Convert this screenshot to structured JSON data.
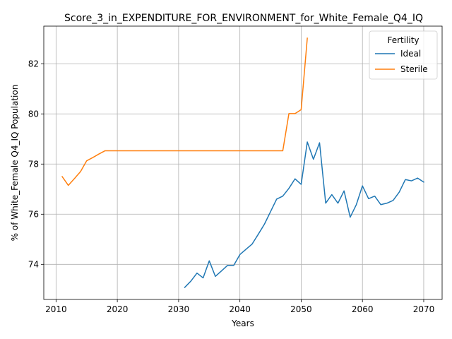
{
  "chart_data": {
    "type": "line",
    "title": "Score_3_in_EXPENDITURE_FOR_ENVIRONMENT_for_White_Female_Q4_IQ",
    "xlabel": "Years",
    "ylabel": "% of White_Female Q4_IQ Population",
    "xlim": [
      2008.0,
      2073.0
    ],
    "ylim": [
      72.6,
      83.5
    ],
    "xticks": [
      2010,
      2020,
      2030,
      2040,
      2050,
      2060,
      2070
    ],
    "yticks": [
      74,
      76,
      78,
      80,
      82
    ],
    "grid": true,
    "legend": {
      "title": "Fertility",
      "placement": "upper-right"
    },
    "series": [
      {
        "name": "Ideal",
        "color": "#1f77b4",
        "x": [
          2031,
          2032,
          2033,
          2034,
          2035,
          2036,
          2037,
          2038,
          2039,
          2040,
          2041,
          2042,
          2043,
          2044,
          2045,
          2046,
          2047,
          2048,
          2049,
          2050,
          2051,
          2052,
          2053,
          2054,
          2055,
          2056,
          2057,
          2058,
          2059,
          2060,
          2061,
          2062,
          2063,
          2064,
          2065,
          2066,
          2067,
          2068,
          2069,
          2070
        ],
        "y": [
          73.08,
          73.33,
          73.65,
          73.46,
          74.14,
          73.52,
          73.74,
          73.96,
          73.96,
          74.39,
          74.6,
          74.81,
          75.2,
          75.6,
          76.1,
          76.6,
          76.72,
          77.03,
          77.41,
          77.19,
          78.88,
          78.19,
          78.85,
          76.44,
          76.78,
          76.44,
          76.93,
          75.88,
          76.38,
          77.13,
          76.62,
          76.72,
          76.38,
          76.44,
          76.55,
          76.88,
          77.38,
          77.33,
          77.44,
          77.28
        ]
      },
      {
        "name": "Sterile",
        "color": "#ff7f0e",
        "x": [
          2011,
          2012,
          2013,
          2014,
          2015,
          2016,
          2017,
          2018,
          2019,
          2020,
          2021,
          2022,
          2023,
          2024,
          2025,
          2026,
          2027,
          2028,
          2029,
          2030,
          2031,
          2032,
          2033,
          2034,
          2035,
          2036,
          2037,
          2038,
          2039,
          2040,
          2041,
          2042,
          2043,
          2044,
          2045,
          2046,
          2047,
          2048,
          2049,
          2050,
          2051
        ],
        "y": [
          77.5,
          77.15,
          77.42,
          77.7,
          78.13,
          78.26,
          78.4,
          78.53,
          78.53,
          78.53,
          78.53,
          78.53,
          78.53,
          78.53,
          78.53,
          78.53,
          78.53,
          78.53,
          78.53,
          78.53,
          78.53,
          78.53,
          78.53,
          78.53,
          78.53,
          78.53,
          78.53,
          78.53,
          78.53,
          78.53,
          78.53,
          78.53,
          78.53,
          78.53,
          78.53,
          78.53,
          78.53,
          80.01,
          80.01,
          80.17,
          83.02
        ]
      }
    ]
  }
}
